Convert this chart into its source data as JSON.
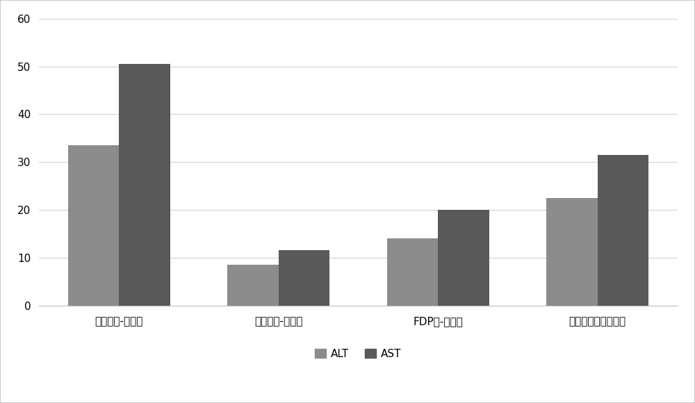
{
  "categories": [
    "组合物组-减少量",
    "水飞蓟组-减少量",
    "FDP组-减少量",
    "单独使用减少量之和"
  ],
  "alt_values": [
    33.5,
    8.5,
    14.0,
    22.5
  ],
  "ast_values": [
    50.5,
    11.5,
    20.0,
    31.5
  ],
  "alt_color": "#8c8c8c",
  "ast_color": "#595959",
  "legend_labels": [
    "ALT",
    "AST"
  ],
  "ylim": [
    0,
    60
  ],
  "yticks": [
    0,
    10,
    20,
    30,
    40,
    50,
    60
  ],
  "bar_width": 0.32,
  "background_color": "#ffffff",
  "plot_bg_color": "#ffffff",
  "grid_color": "#d0d0d0",
  "border_color": "#c0c0c0",
  "figure_width": 10.0,
  "figure_height": 5.8,
  "tick_fontsize": 11,
  "legend_fontsize": 11
}
